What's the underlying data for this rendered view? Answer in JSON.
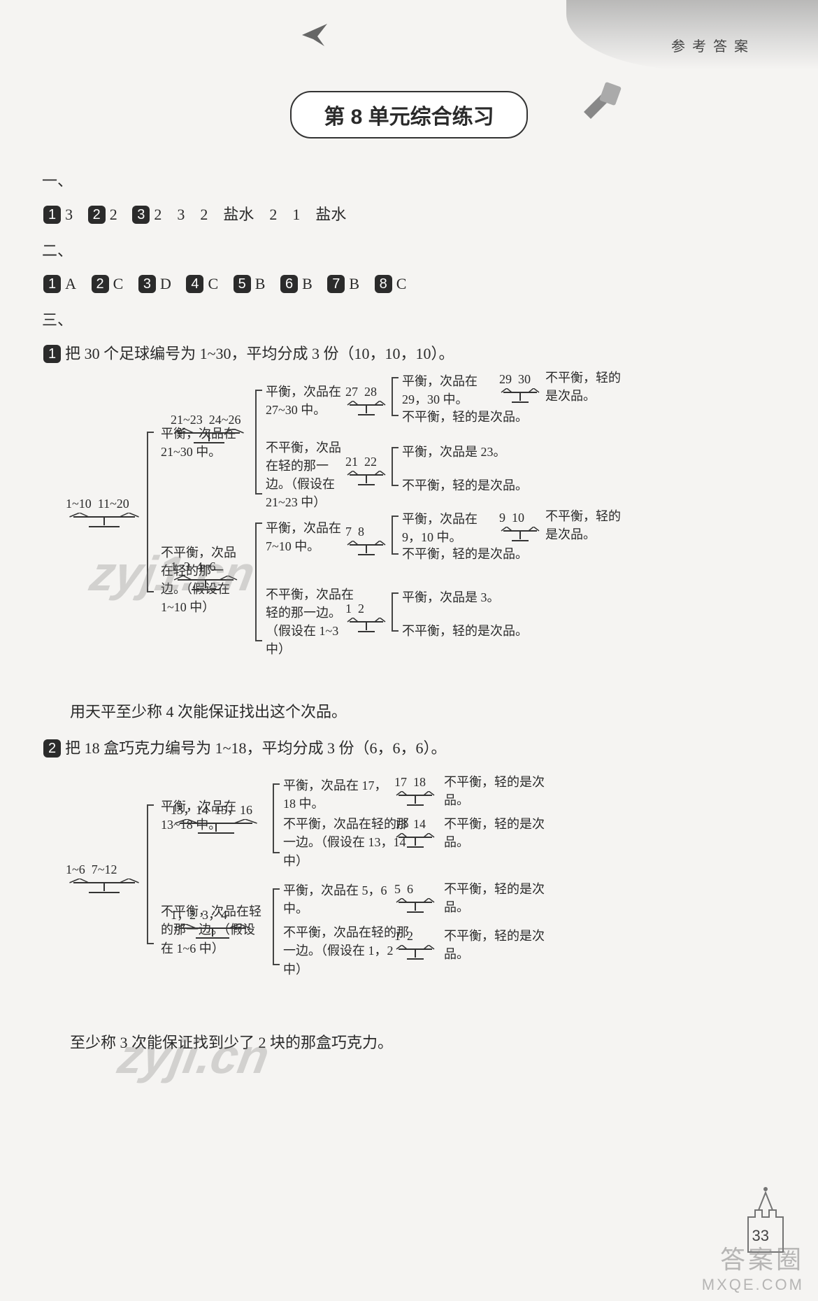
{
  "header": {
    "right_label": "参考答案"
  },
  "unit_title": "第 8 单元综合练习",
  "section1": {
    "heading": "一、",
    "items": [
      {
        "chip": "1",
        "text": "3"
      },
      {
        "chip": "2",
        "text": "2"
      },
      {
        "chip": "3",
        "text": "2　3　2　盐水　2　1　盐水"
      }
    ]
  },
  "section2": {
    "heading": "二、",
    "items": [
      {
        "chip": "1",
        "text": "A"
      },
      {
        "chip": "2",
        "text": "C"
      },
      {
        "chip": "3",
        "text": "D"
      },
      {
        "chip": "4",
        "text": "C"
      },
      {
        "chip": "5",
        "text": "B"
      },
      {
        "chip": "6",
        "text": "B"
      },
      {
        "chip": "7",
        "text": "B"
      },
      {
        "chip": "8",
        "text": "C"
      }
    ]
  },
  "section3": {
    "heading": "三、",
    "q1": {
      "chip": "1",
      "intro": "把 30 个足球编号为 1~30，平均分成 3 份（10，10，10）。",
      "conclusion": "用天平至少称 4 次能保证找出这个次品。"
    },
    "q2": {
      "chip": "2",
      "intro": "把 18 盒巧克力编号为 1~18，平均分成 3 份（6，6，6）。",
      "conclusion": "至少称 3 次能保证找到少了 2 块的那盒巧克力。"
    }
  },
  "tree1": {
    "root_scale": {
      "l": "1~10",
      "r": "11~20"
    },
    "branches": [
      {
        "label": "平衡，次品在 21~30 中。",
        "scale": {
          "l": "21~23",
          "r": "24~26"
        },
        "children": [
          {
            "label": "平衡，次品在 27~30 中。",
            "scale": {
              "l": "27",
              "r": "28"
            },
            "leaves": [
              {
                "cond": "平衡，次品在 29，30 中。",
                "scale": {
                  "l": "29",
                  "r": "30"
                },
                "tail": "不平衡，轻的是次品。"
              },
              {
                "cond": "不平衡，轻的是次品。"
              }
            ]
          },
          {
            "label": "不平衡，次品在轻的那一边。（假设在 21~23 中）",
            "scale": {
              "l": "21",
              "r": "22"
            },
            "leaves": [
              {
                "cond": "平衡，次品是 23。"
              },
              {
                "cond": "不平衡，轻的是次品。"
              }
            ]
          }
        ]
      },
      {
        "label": "不平衡，次品在轻的那一边。（假设在 1~10 中）",
        "scale": {
          "l": "1~3",
          "r": "4~6"
        },
        "children": [
          {
            "label": "平衡，次品在 7~10 中。",
            "scale": {
              "l": "7",
              "r": "8"
            },
            "leaves": [
              {
                "cond": "平衡，次品在 9，10 中。",
                "scale": {
                  "l": "9",
                  "r": "10"
                },
                "tail": "不平衡，轻的是次品。"
              },
              {
                "cond": "不平衡，轻的是次品。"
              }
            ]
          },
          {
            "label": "不平衡，次品在轻的那一边。（假设在 1~3 中）",
            "scale": {
              "l": "1",
              "r": "2"
            },
            "leaves": [
              {
                "cond": "平衡，次品是 3。"
              },
              {
                "cond": "不平衡，轻的是次品。"
              }
            ]
          }
        ]
      }
    ]
  },
  "tree2": {
    "root_scale": {
      "l": "1~6",
      "r": "7~12"
    },
    "branches": [
      {
        "label": "平衡，次品在 13~18 中。",
        "scale": {
          "l": "13，14",
          "r": "15，16"
        },
        "children": [
          {
            "label": "平衡，次品在 17，18 中。",
            "scale": {
              "l": "17",
              "r": "18"
            },
            "tail": "不平衡，轻的是次品。"
          },
          {
            "label": "不平衡，次品在轻的那一边。（假设在 13，14 中）",
            "scale": {
              "l": "13",
              "r": "14"
            },
            "tail": "不平衡，轻的是次品。"
          }
        ]
      },
      {
        "label": "不平衡，次品在轻的那一边。（假设在 1~6 中）",
        "scale": {
          "l": "1，2",
          "r": "3，4"
        },
        "children": [
          {
            "label": "平衡，次品在 5，6 中。",
            "scale": {
              "l": "5",
              "r": "6"
            },
            "tail": "不平衡，轻的是次品。"
          },
          {
            "label": "不平衡，次品在轻的那一边。（假设在 1，2 中）",
            "scale": {
              "l": "1",
              "r": "2"
            },
            "tail": "不平衡，轻的是次品。"
          }
        ]
      }
    ]
  },
  "watermarks": {
    "wm1": "zyj1.cn",
    "wm2": "zyji.cn",
    "footer1": "答案圈",
    "footer2": "MXQE.COM"
  },
  "page_number": "33",
  "colors": {
    "text": "#2a2a2a",
    "chip_bg": "#2b2b2b",
    "line": "#444",
    "bg": "#f5f4f2"
  }
}
